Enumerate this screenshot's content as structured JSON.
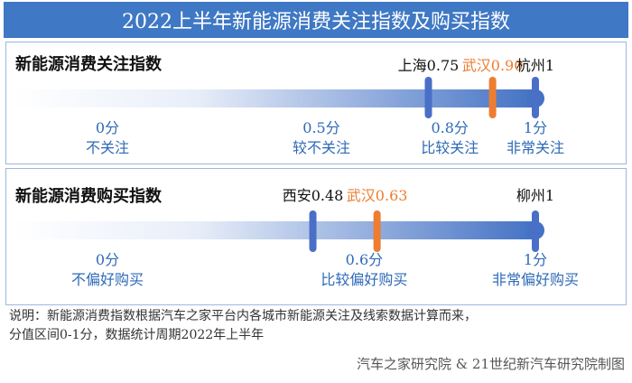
{
  "title": "2022上半年新能源消费关注指数及购买指数",
  "colors": {
    "title_bg": "#3f78c4",
    "bar_start": "#ffffff",
    "bar_end": "#4472c4",
    "marker_blue": "#4a6fc7",
    "marker_orange": "#ed7d31",
    "scale_text": "#2e6ab8",
    "highlight_text": "#ed7d31"
  },
  "note_line1": "说明：新能源消费指数根据汽车之家平台内各城市新能源关注及线索数据计算而来，",
  "note_line2": "分值区间0-1分，数据统计周期2022年上半年",
  "source": "汽车之家研究院 & 21世纪新汽车研究院制图",
  "chart_data": [
    {
      "type": "bar",
      "title": "新能源消费关注指数",
      "range": [
        0,
        1
      ],
      "scale_ticks": [
        {
          "value": 0,
          "score_label": "0分",
          "desc": "不关注"
        },
        {
          "value": 0.5,
          "score_label": "0.5分",
          "desc": "较不关注"
        },
        {
          "value": 0.8,
          "score_label": "0.8分",
          "desc": "比较关注"
        },
        {
          "value": 1,
          "score_label": "1分",
          "desc": "非常关注"
        }
      ],
      "markers": [
        {
          "city": "上海",
          "value": 0.75,
          "label": "上海0.75",
          "color": "marker_blue"
        },
        {
          "city": "武汉",
          "value": 0.9,
          "label": "武汉0.90",
          "color": "marker_orange"
        },
        {
          "city": "杭州",
          "value": 1,
          "label": "杭州1",
          "color": "marker_blue"
        }
      ]
    },
    {
      "type": "bar",
      "title": "新能源消费购买指数",
      "range": [
        0,
        1
      ],
      "scale_ticks": [
        {
          "value": 0,
          "score_label": "0分",
          "desc": "不偏好购买"
        },
        {
          "value": 0.6,
          "score_label": "0.6分",
          "desc": "比较偏好购买"
        },
        {
          "value": 1,
          "score_label": "1分",
          "desc": "非常偏好购买"
        }
      ],
      "markers": [
        {
          "city": "西安",
          "value": 0.48,
          "label": "西安0.48",
          "color": "marker_blue"
        },
        {
          "city": "武汉",
          "value": 0.63,
          "label": "武汉0.63",
          "color": "marker_orange"
        },
        {
          "city": "柳州",
          "value": 1,
          "label": "柳州1",
          "color": "marker_blue"
        }
      ]
    }
  ]
}
